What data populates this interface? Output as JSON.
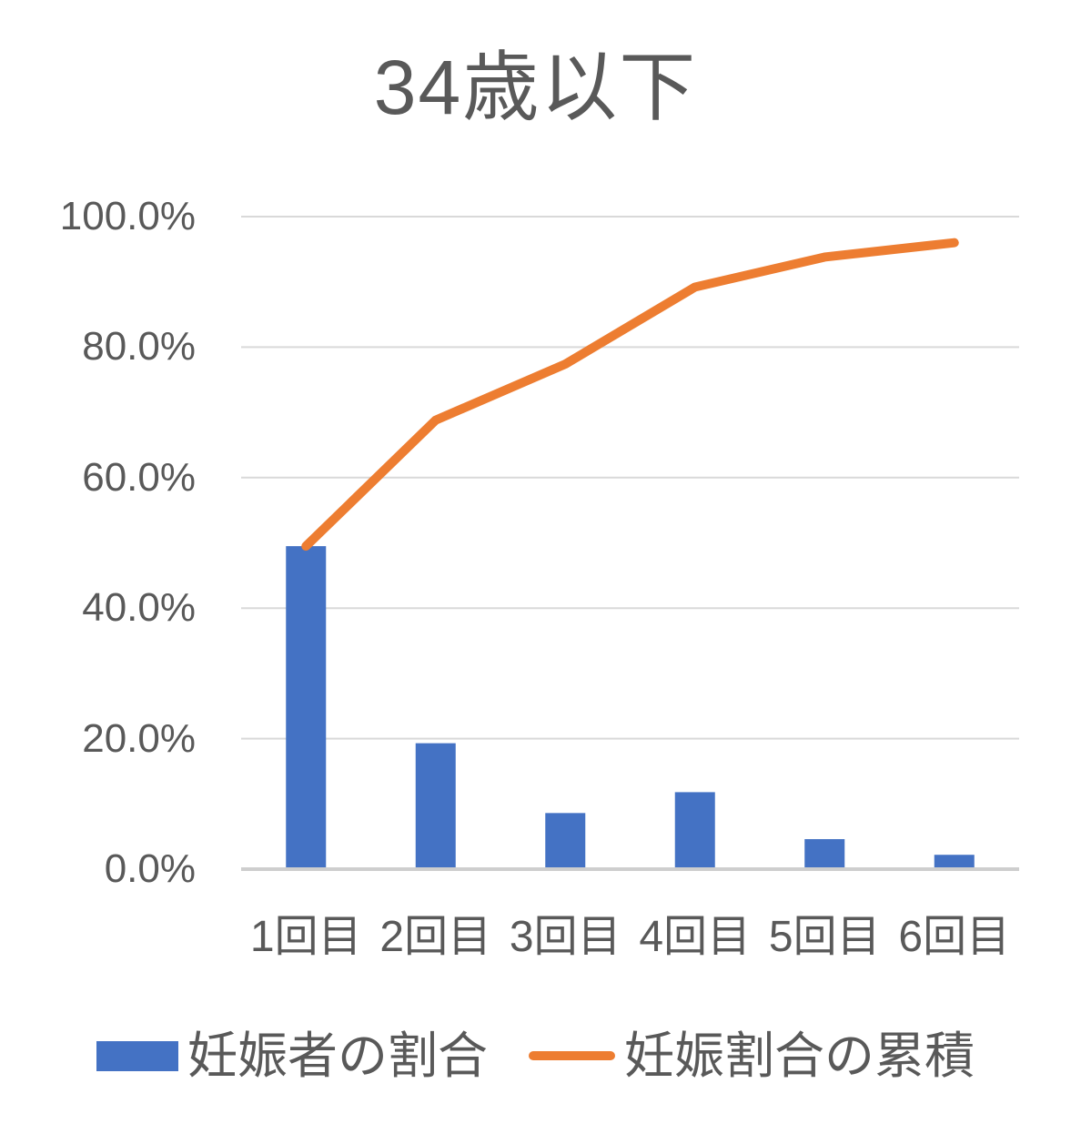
{
  "chart_data": {
    "type": "pareto",
    "title": "34歳以下",
    "categories": [
      "1回目",
      "2回目",
      "3回目",
      "4回目",
      "5回目",
      "6回目"
    ],
    "series": [
      {
        "name": "妊娠者の割合",
        "type": "bar",
        "color": "#4472C4",
        "values": [
          49.5,
          19.3,
          8.6,
          11.8,
          4.6,
          2.2
        ]
      },
      {
        "name": "妊娠割合の累積",
        "type": "line",
        "color": "#ED7D31",
        "values": [
          49.5,
          68.8,
          77.4,
          89.2,
          93.8,
          96.0
        ]
      }
    ],
    "y_axis": {
      "min": 0,
      "max": 100,
      "step": 20,
      "tick_labels": [
        "0.0%",
        "20.0%",
        "40.0%",
        "60.0%",
        "80.0%",
        "100.0%"
      ]
    },
    "x_axis": {
      "label": ""
    },
    "grid": true,
    "legend_position": "bottom",
    "colors": {
      "text": "#595959",
      "gridline": "#D9D9D9",
      "axis_line": "#CECECE",
      "background": "#FFFFFF"
    }
  }
}
